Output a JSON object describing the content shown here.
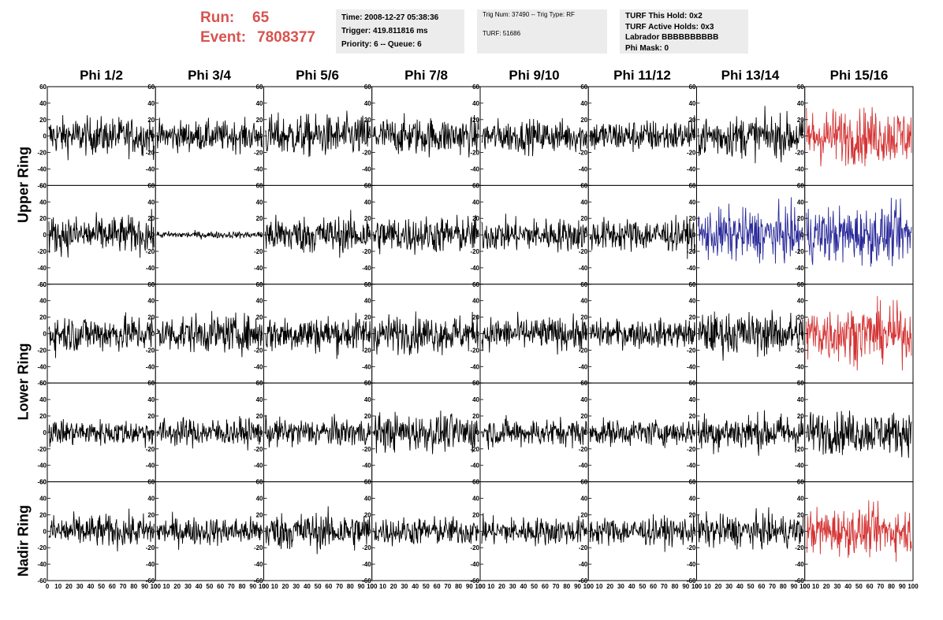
{
  "run": {
    "run_label": "Run:",
    "run_value": "65",
    "event_label": "Event:",
    "event_value": "7808377"
  },
  "info1": {
    "time": "Time: 2008-12-27 05:38:36",
    "trigger": "Trigger: 419.811816 ms",
    "priority": "Priority: 6 -- Queue: 6"
  },
  "info2": {
    "trig": "Trig Num: 37490 -- Trig Type: RF",
    "turf": "TURF: 51686"
  },
  "info3": {
    "hold": "TURF This Hold: 0x2",
    "active": "TURF Active Holds: 0x3",
    "labrador": "Labrador BBBBBBBBBB",
    "mask": "Phi Mask: 0"
  },
  "phi_labels": [
    "Phi 1/2",
    "Phi 3/4",
    "Phi 5/6",
    "Phi 7/8",
    "Phi 9/10",
    "Phi 11/12",
    "Phi 13/14",
    "Phi 15/16"
  ],
  "ring_labels": {
    "upper": "Upper Ring",
    "lower": "Lower Ring",
    "nadir": "Nadir Ring"
  },
  "colors": {
    "normal": "#000000",
    "triggered": "#d43333",
    "active": "#2a2a9a",
    "run_text": "#d9534f",
    "info_bg": "#ececec"
  },
  "chart_data": {
    "type": "line",
    "rows": 5,
    "cols": 8,
    "ylim": [
      -60,
      60
    ],
    "yticks": [
      -60,
      -40,
      -20,
      0,
      20,
      40,
      60
    ],
    "xlim": [
      0,
      100
    ],
    "xticks": [
      "0",
      "10",
      "20",
      "30",
      "40",
      "50",
      "60",
      "70",
      "80",
      "90",
      "100"
    ],
    "panel_styles": [
      [
        "normal",
        "normal",
        "normal",
        "normal",
        "normal",
        "normal",
        "normal",
        "triggered"
      ],
      [
        "normal",
        "normal",
        "normal",
        "normal",
        "normal",
        "normal",
        "active",
        "active"
      ],
      [
        "normal",
        "normal",
        "normal",
        "normal",
        "normal",
        "normal",
        "normal",
        "triggered"
      ],
      [
        "normal",
        "normal",
        "normal",
        "normal",
        "normal",
        "normal",
        "normal",
        "normal"
      ],
      [
        "normal",
        "normal",
        "normal",
        "normal",
        "normal",
        "normal",
        "normal",
        "triggered"
      ]
    ],
    "amplitudes": [
      [
        16,
        13,
        18,
        16,
        14,
        14,
        18,
        24
      ],
      [
        16,
        3,
        16,
        16,
        14,
        14,
        22,
        24
      ],
      [
        16,
        16,
        16,
        16,
        14,
        12,
        18,
        24
      ],
      [
        11,
        12,
        12,
        16,
        12,
        11,
        16,
        18
      ],
      [
        14,
        12,
        16,
        12,
        12,
        12,
        14,
        20
      ]
    ]
  }
}
